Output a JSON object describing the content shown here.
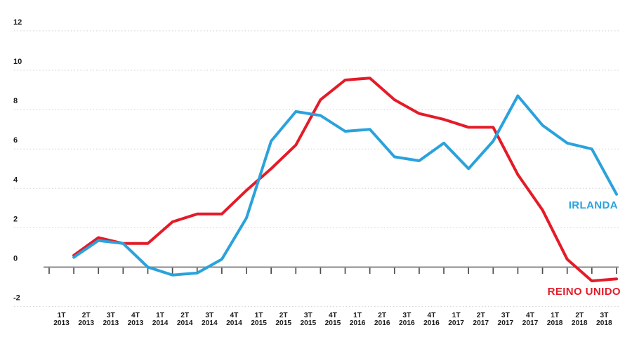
{
  "chart_data": {
    "type": "line",
    "title": "",
    "xlabel": "",
    "ylabel": "",
    "grid": "horizontal-dotted",
    "legend_position": "inline-end-of-line",
    "categories": [
      "1T 2013",
      "2T 2013",
      "3T 2013",
      "4T 2013",
      "1T 2014",
      "2T 2014",
      "3T 2014",
      "4T 2014",
      "1T 2015",
      "2T 2015",
      "3T 2015",
      "4T 2015",
      "1T 2016",
      "2T 2016",
      "3T 2016",
      "4T 2016",
      "1T 2017",
      "2T 2017",
      "3T 2017",
      "4T 2017",
      "1T 2018",
      "2T 2018",
      "3T 2018"
    ],
    "series": [
      {
        "name": "IRLANDA",
        "color": "#2aa2dc",
        "values": [
          0.5,
          1.35,
          1.2,
          0.0,
          -0.4,
          -0.3,
          0.4,
          2.5,
          6.4,
          7.9,
          7.7,
          6.9,
          7.0,
          5.6,
          5.4,
          6.3,
          5.0,
          6.4,
          8.7,
          7.2,
          6.3,
          6.0,
          3.7
        ]
      },
      {
        "name": "REINO UNIDO",
        "color": "#e41b28",
        "values": [
          0.6,
          1.5,
          1.2,
          1.2,
          2.3,
          2.7,
          2.7,
          3.9,
          5.0,
          6.2,
          8.5,
          9.5,
          9.6,
          8.5,
          7.8,
          7.5,
          7.1,
          7.1,
          4.7,
          2.9,
          0.4,
          -0.7,
          -0.6
        ]
      }
    ],
    "y_axis": {
      "ticks": [
        12,
        10,
        8,
        6,
        4,
        2,
        0,
        -2
      ],
      "zero_baseline": 0,
      "ylim": [
        -2.8,
        12.8
      ]
    },
    "style": {
      "gridline_color": "#d0d0d0",
      "axis_color": "#8a8a8a",
      "tick_color": "#4d4d4d",
      "label_color": "#1a1a1a",
      "background": "#ffffff"
    }
  }
}
